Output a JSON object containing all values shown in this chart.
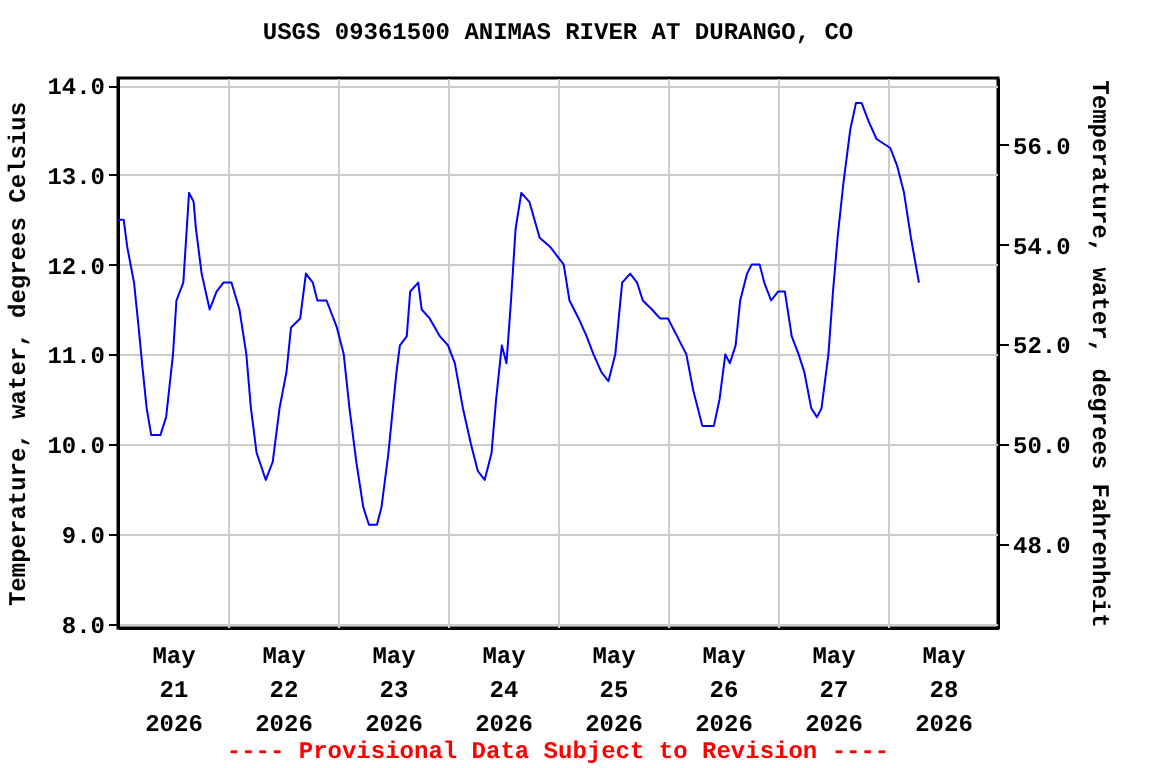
{
  "chart_data": {
    "type": "line",
    "title": "USGS 09361500 ANIMAS RIVER AT DURANGO, CO",
    "ylabel": "Temperature, water, degrees Celsius",
    "y2label": "Temperature, water, degrees Fahrenheit",
    "annotations": [
      "---- Provisional Data Subject to Revision ----"
    ],
    "x": [
      "2026-05-21T00:00",
      "2026-05-21T01:15",
      "2026-05-21T02:00",
      "2026-05-21T03:30",
      "2026-05-21T04:30",
      "2026-05-21T05:15",
      "2026-05-21T06:15",
      "2026-05-21T07:15",
      "2026-05-21T09:15",
      "2026-05-21T10:30",
      "2026-05-21T12:00",
      "2026-05-21T12:45",
      "2026-05-21T14:15",
      "2026-05-21T14:45",
      "2026-05-21T15:30",
      "2026-05-21T16:30",
      "2026-05-21T17:00",
      "2026-05-21T18:15",
      "2026-05-21T20:00",
      "2026-05-21T21:30",
      "2026-05-21T23:00",
      "2026-05-22T00:45",
      "2026-05-22T02:30",
      "2026-05-22T04:00",
      "2026-05-22T05:00",
      "2026-05-22T06:15",
      "2026-05-22T08:15",
      "2026-05-22T09:45",
      "2026-05-22T11:15",
      "2026-05-22T12:45",
      "2026-05-22T13:45",
      "2026-05-22T15:45",
      "2026-05-22T17:00",
      "2026-05-22T18:30",
      "2026-05-22T19:30",
      "2026-05-22T21:30",
      "2026-05-22T23:45",
      "2026-05-23T01:15",
      "2026-05-23T02:30",
      "2026-05-23T04:00",
      "2026-05-23T05:30",
      "2026-05-23T06:45",
      "2026-05-23T08:30",
      "2026-05-23T09:30",
      "2026-05-23T11:00",
      "2026-05-23T12:45",
      "2026-05-23T13:30",
      "2026-05-23T15:00",
      "2026-05-23T15:45",
      "2026-05-23T17:30",
      "2026-05-23T18:15",
      "2026-05-23T20:00",
      "2026-05-23T22:15",
      "2026-05-24T00:00",
      "2026-05-24T01:30",
      "2026-05-24T03:15",
      "2026-05-24T05:00",
      "2026-05-24T06:30",
      "2026-05-24T08:00",
      "2026-05-24T09:30",
      "2026-05-24T10:30",
      "2026-05-24T11:45",
      "2026-05-24T12:45",
      "2026-05-24T13:45",
      "2026-05-24T14:45",
      "2026-05-24T16:00",
      "2026-05-24T17:45",
      "2026-05-24T20:00",
      "2026-05-24T22:15",
      "2026-05-25T01:15",
      "2026-05-25T02:30",
      "2026-05-25T04:30",
      "2026-05-25T06:15",
      "2026-05-25T07:45",
      "2026-05-25T09:30",
      "2026-05-25T11:00",
      "2026-05-25T12:30",
      "2026-05-25T14:00",
      "2026-05-25T15:45",
      "2026-05-25T17:15",
      "2026-05-25T18:30",
      "2026-05-25T20:30",
      "2026-05-25T22:15",
      "2026-05-26T00:00",
      "2026-05-26T02:00",
      "2026-05-26T04:00",
      "2026-05-26T05:30",
      "2026-05-26T07:30",
      "2026-05-26T10:00",
      "2026-05-26T11:15",
      "2026-05-26T12:30",
      "2026-05-26T13:30",
      "2026-05-26T14:45",
      "2026-05-26T15:45",
      "2026-05-26T17:15",
      "2026-05-26T18:15",
      "2026-05-26T20:00",
      "2026-05-26T21:00",
      "2026-05-26T22:30",
      "2026-05-27T00:00",
      "2026-05-27T01:30",
      "2026-05-27T03:00",
      "2026-05-27T04:30",
      "2026-05-27T05:45",
      "2026-05-27T07:15",
      "2026-05-27T08:30",
      "2026-05-27T09:30",
      "2026-05-27T11:00",
      "2026-05-27T12:00",
      "2026-05-27T13:00",
      "2026-05-27T14:15",
      "2026-05-27T15:45",
      "2026-05-27T17:00",
      "2026-05-27T18:15",
      "2026-05-27T19:45",
      "2026-05-27T21:30",
      "2026-05-28T00:30",
      "2026-05-28T02:00",
      "2026-05-28T03:30",
      "2026-05-28T05:00",
      "2026-05-28T06:45"
    ],
    "series": [
      {
        "color": "#0000ff",
        "values": [
          12.5,
          12.5,
          12.2,
          11.8,
          11.3,
          10.9,
          10.4,
          10.1,
          10.1,
          10.3,
          11.0,
          11.6,
          11.8,
          12.2,
          12.8,
          12.7,
          12.4,
          11.9,
          11.5,
          11.7,
          11.8,
          11.8,
          11.5,
          11.0,
          10.4,
          9.9,
          9.6,
          9.8,
          10.4,
          10.8,
          11.3,
          11.4,
          11.9,
          11.8,
          11.6,
          11.6,
          11.3,
          11.0,
          10.4,
          9.8,
          9.3,
          9.1,
          9.1,
          9.3,
          9.9,
          10.8,
          11.1,
          11.2,
          11.7,
          11.8,
          11.5,
          11.4,
          11.2,
          11.1,
          10.9,
          10.4,
          10.0,
          9.7,
          9.6,
          9.9,
          10.5,
          11.1,
          10.9,
          11.6,
          12.4,
          12.8,
          12.7,
          12.3,
          12.2,
          12.0,
          11.6,
          11.4,
          11.2,
          11.0,
          10.8,
          10.7,
          11.0,
          11.8,
          11.9,
          11.8,
          11.6,
          11.5,
          11.4,
          11.4,
          11.2,
          11.0,
          10.6,
          10.2,
          10.2,
          10.5,
          11.0,
          10.9,
          11.1,
          11.6,
          11.9,
          12.0,
          12.0,
          11.8,
          11.6,
          11.7,
          11.7,
          11.2,
          11.0,
          10.8,
          10.4,
          10.3,
          10.4,
          11.0,
          11.7,
          12.3,
          12.9,
          13.5,
          13.8,
          13.8,
          13.6,
          13.4,
          13.3,
          13.1,
          12.8,
          12.3,
          11.8
        ]
      }
    ],
    "xlim": [
      "2026-05-21T00:00",
      "2026-05-29T00:00"
    ],
    "xticks": [
      {
        "value": "2026-05-21T12:00",
        "label": "May 21 2026"
      },
      {
        "value": "2026-05-22T00:00",
        "label": null
      },
      {
        "value": "2026-05-22T12:00",
        "label": "May 22 2026"
      },
      {
        "value": "2026-05-23T00:00",
        "label": null
      },
      {
        "value": "2026-05-23T12:00",
        "label": "May 23 2026"
      },
      {
        "value": "2026-05-24T00:00",
        "label": null
      },
      {
        "value": "2026-05-24T12:00",
        "label": "May 24 2026"
      },
      {
        "value": "2026-05-25T00:00",
        "label": null
      },
      {
        "value": "2026-05-25T12:00",
        "label": "May 25 2026"
      },
      {
        "value": "2026-05-26T00:00",
        "label": null
      },
      {
        "value": "2026-05-26T12:00",
        "label": "May 26 2026"
      },
      {
        "value": "2026-05-27T00:00",
        "label": null
      },
      {
        "value": "2026-05-27T12:00",
        "label": "May 27 2026"
      },
      {
        "value": "2026-05-28T00:00",
        "label": null
      },
      {
        "value": "2026-05-28T12:00",
        "label": "May 28 2026"
      }
    ],
    "ylim": [
      7.95,
      14.08
    ],
    "yticks": [
      {
        "value": 8,
        "label": "8.0"
      },
      {
        "value": 9,
        "label": "9.0"
      },
      {
        "value": 10,
        "label": "10.0"
      },
      {
        "value": 11,
        "label": "11.0"
      },
      {
        "value": 12,
        "label": "12.0"
      },
      {
        "value": 13,
        "label": "13.0"
      },
      {
        "value": 14,
        "label": "14.0"
      }
    ],
    "y2lim": [
      46.31,
      57.34
    ],
    "y2ticks": [
      {
        "value": 48,
        "label": "48.0"
      },
      {
        "value": 50,
        "label": "50.0"
      },
      {
        "value": 52,
        "label": "52.0"
      },
      {
        "value": 54,
        "label": "54.0"
      },
      {
        "value": 56,
        "label": "56.0"
      }
    ],
    "grid": true,
    "line_style": "solid"
  }
}
